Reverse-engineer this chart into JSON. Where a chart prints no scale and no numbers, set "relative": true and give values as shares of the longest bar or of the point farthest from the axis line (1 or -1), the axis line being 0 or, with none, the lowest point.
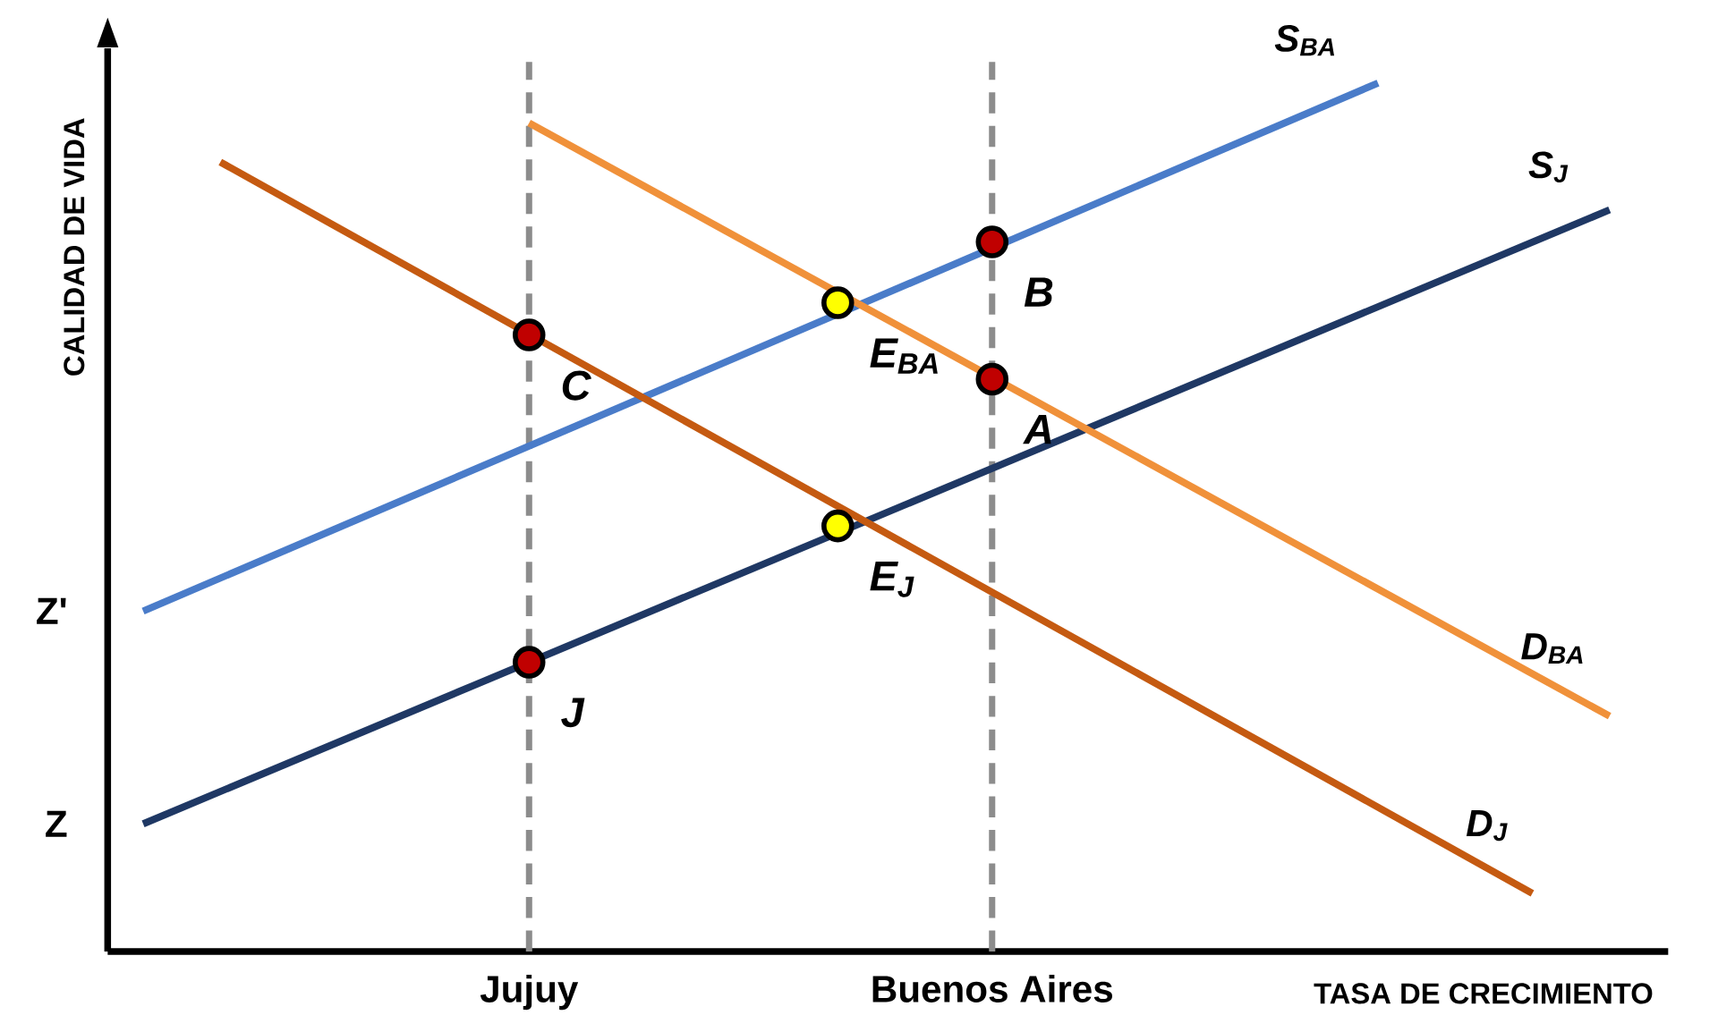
{
  "chart_data": {
    "type": "line",
    "relative": true,
    "xlabel": "TASA DE CRECIMIENTO",
    "ylabel": "CALIDAD DE VIDA",
    "categories": [
      null,
      null,
      null,
      null,
      null,
      "Jujuy",
      null,
      null,
      null,
      null,
      null,
      "Buenos Aires",
      null,
      null,
      null,
      null,
      null,
      null,
      null,
      null
    ],
    "ref_lines": [
      {
        "axis": "x",
        "value": "Jujuy",
        "color": "#8c8c8c",
        "line_style": "dashed"
      },
      {
        "axis": "x",
        "value": "Buenos Aires",
        "color": "#8c8c8c",
        "line_style": "dashed"
      }
    ],
    "series": [
      {
        "name": "S$_{BA}$",
        "type": "line",
        "color": "#4a7cc9",
        "values": [
          0.392,
          null,
          null,
          null,
          null,
          null,
          null,
          null,
          null,
          null,
          null,
          null,
          null,
          null,
          null,
          null,
          1.0,
          null,
          null,
          null
        ]
      },
      {
        "name": "S$_{J}$",
        "type": "line",
        "color": "#1f3864",
        "values": [
          0.147,
          null,
          null,
          null,
          null,
          null,
          null,
          null,
          null,
          null,
          null,
          null,
          null,
          null,
          null,
          null,
          null,
          null,
          null,
          0.854
        ]
      },
      {
        "name": "D$_{BA}$",
        "type": "line",
        "color": "#f0913a",
        "values": [
          null,
          null,
          null,
          null,
          null,
          0.954,
          null,
          null,
          null,
          null,
          null,
          null,
          null,
          null,
          null,
          null,
          null,
          null,
          null,
          0.271
        ]
      },
      {
        "name": "D$_{J}$",
        "type": "line",
        "color": "#c55a11",
        "values": [
          null,
          0.909,
          null,
          null,
          null,
          null,
          null,
          null,
          null,
          null,
          null,
          null,
          null,
          null,
          null,
          null,
          null,
          null,
          0.067,
          null
        ]
      },
      {
        "name": "B",
        "type": "scatter",
        "marker": "circle",
        "color": "#c00000",
        "values": [
          null,
          null,
          null,
          null,
          null,
          null,
          null,
          null,
          null,
          null,
          null,
          0.817,
          null,
          null,
          null,
          null,
          null,
          null,
          null,
          null
        ]
      },
      {
        "name": "A",
        "type": "scatter",
        "marker": "circle",
        "color": "#c00000",
        "values": [
          null,
          null,
          null,
          null,
          null,
          null,
          null,
          null,
          null,
          null,
          null,
          0.659,
          null,
          null,
          null,
          null,
          null,
          null,
          null,
          null
        ]
      },
      {
        "name": "C",
        "type": "scatter",
        "marker": "circle",
        "color": "#c00000",
        "values": [
          null,
          null,
          null,
          null,
          null,
          0.71,
          null,
          null,
          null,
          null,
          null,
          null,
          null,
          null,
          null,
          null,
          null,
          null,
          null,
          null
        ]
      },
      {
        "name": "J",
        "type": "scatter",
        "marker": "circle",
        "color": "#c00000",
        "values": [
          null,
          null,
          null,
          null,
          null,
          0.333,
          null,
          null,
          null,
          null,
          null,
          null,
          null,
          null,
          null,
          null,
          null,
          null,
          null,
          null
        ]
      },
      {
        "name": "E$_{BA}$",
        "type": "scatter",
        "marker": "circle",
        "color": "#ffff00",
        "values": [
          null,
          null,
          null,
          null,
          null,
          null,
          null,
          null,
          null,
          0.747,
          null,
          null,
          null,
          null,
          null,
          null,
          null,
          null,
          null,
          null
        ]
      },
      {
        "name": "E$_{J}$",
        "type": "scatter",
        "marker": "circle",
        "color": "#ffff00",
        "values": [
          null,
          null,
          null,
          null,
          null,
          null,
          null,
          null,
          null,
          0.49,
          null,
          null,
          null,
          null,
          null,
          null,
          null,
          null,
          null,
          null
        ]
      }
    ],
    "annotations": [
      "Z'",
      "Z"
    ]
  }
}
